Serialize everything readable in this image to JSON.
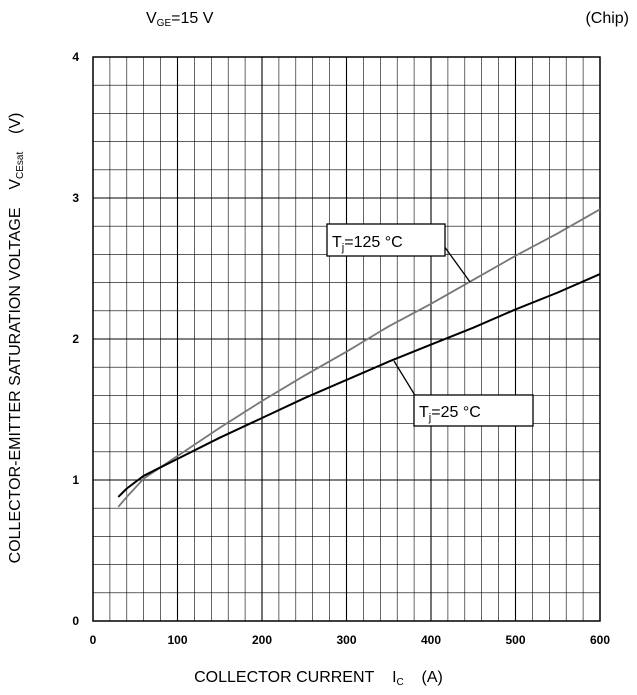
{
  "chart_data": {
    "type": "line",
    "condition": {
      "prefix": "V",
      "sub": "GE",
      "suffix": "=15 V"
    },
    "note": "(Chip)",
    "xlabel": {
      "text": "COLLECTOR CURRENT",
      "symbol": "I",
      "sub": "C",
      "unit": "(A)"
    },
    "ylabel": {
      "text": "COLLECTOR-EMITTER SATURATION VOLTAGE",
      "symbol": "V",
      "sub": "CEsat",
      "unit": "(V)"
    },
    "xlim": [
      0,
      600
    ],
    "ylim": [
      0,
      4
    ],
    "xticks": [
      "0",
      "100",
      "200",
      "300",
      "400",
      "500",
      "600"
    ],
    "yticks": [
      "0",
      "1",
      "2",
      "3",
      "4"
    ],
    "grid": true,
    "series": [
      {
        "name": "Tj=125 °C",
        "label_main": "T",
        "label_sub": "j",
        "label_rest": "=125 °C",
        "color": "#777777",
        "x": [
          30,
          40,
          60,
          80,
          100,
          150,
          200,
          250,
          300,
          350,
          400,
          450,
          500,
          550,
          600
        ],
        "y": [
          0.81,
          0.88,
          1.01,
          1.09,
          1.17,
          1.37,
          1.56,
          1.74,
          1.91,
          2.09,
          2.25,
          2.42,
          2.59,
          2.75,
          2.92
        ]
      },
      {
        "name": "Tj=25 °C",
        "label_main": "T",
        "label_sub": "j",
        "label_rest": "=25 °C",
        "color": "#000000",
        "x": [
          30,
          40,
          60,
          80,
          100,
          150,
          200,
          250,
          300,
          350,
          400,
          450,
          500,
          550,
          600
        ],
        "y": [
          0.88,
          0.94,
          1.03,
          1.09,
          1.15,
          1.3,
          1.44,
          1.58,
          1.71,
          1.84,
          1.96,
          2.08,
          2.21,
          2.33,
          2.46
        ]
      }
    ]
  }
}
